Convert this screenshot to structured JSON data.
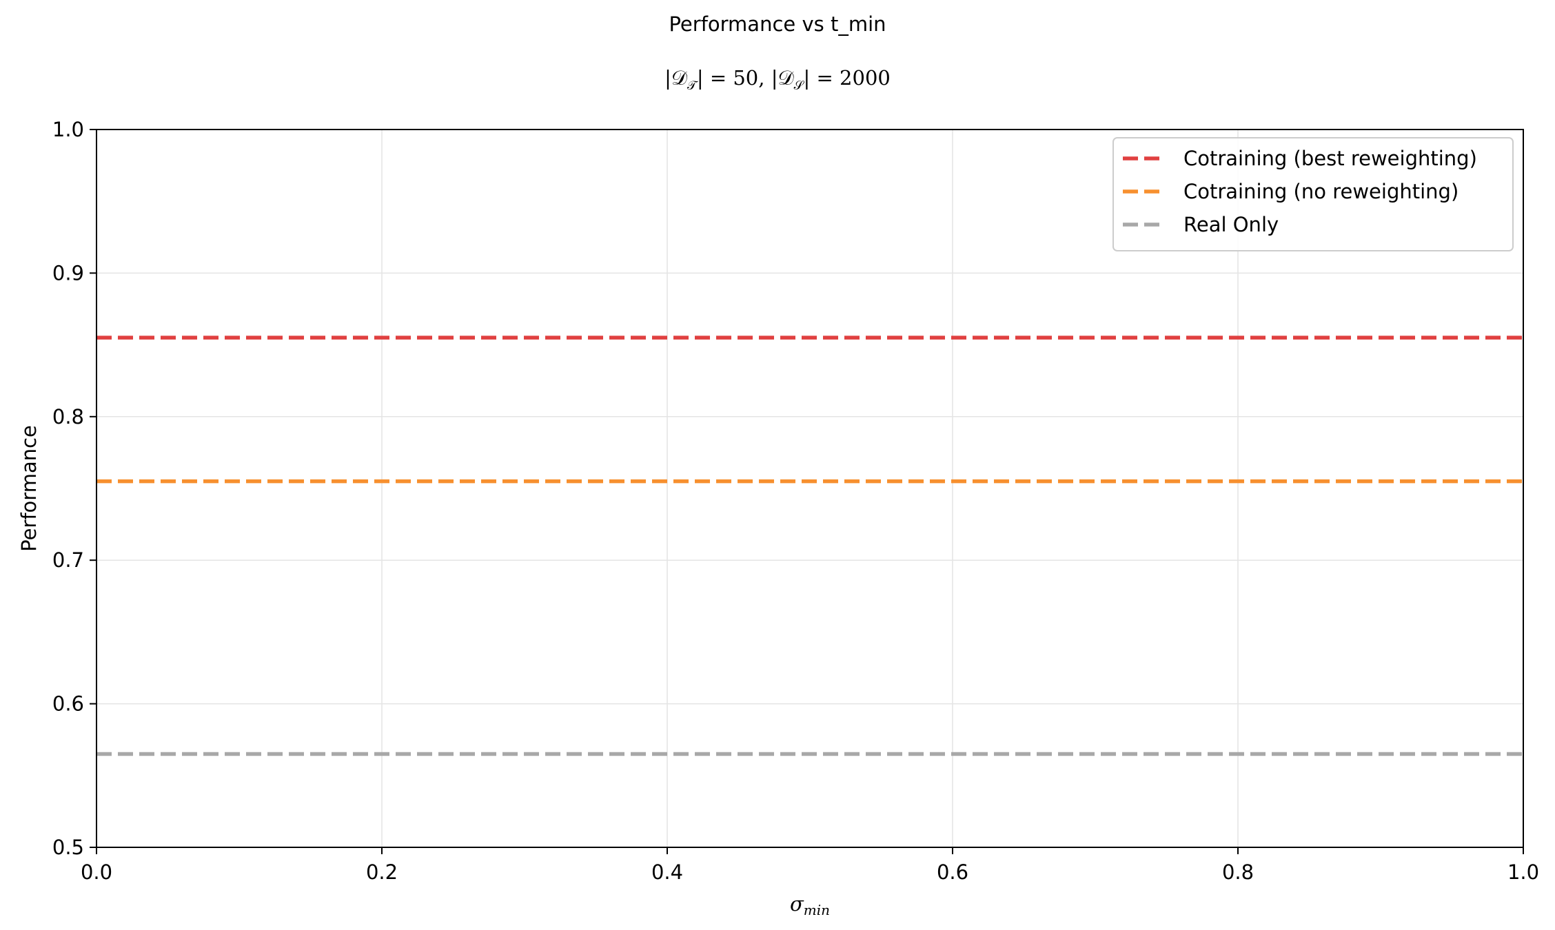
{
  "chart_data": {
    "type": "line",
    "suptitle": "Performance vs t_min",
    "title": "|𝒟_T| = 50, |𝒟_S| = 2000",
    "xlabel": "σ_min",
    "ylabel": "Performance",
    "xlim": [
      0.0,
      1.0
    ],
    "ylim": [
      0.5,
      1.0
    ],
    "xticks": [
      "0.0",
      "0.2",
      "0.4",
      "0.6",
      "0.8",
      "1.0"
    ],
    "yticks": [
      "0.5",
      "0.6",
      "0.7",
      "0.8",
      "0.9",
      "1.0"
    ],
    "grid": true,
    "legend_position": "top-right",
    "series": [
      {
        "name": "Cotraining (best reweighting)",
        "style": "dashed",
        "color": "#e04040",
        "x": [
          0.0,
          1.0
        ],
        "y": [
          0.855,
          0.855
        ]
      },
      {
        "name": "Cotraining (no reweighting)",
        "style": "dashed",
        "color": "#f7902f",
        "x": [
          0.0,
          1.0
        ],
        "y": [
          0.755,
          0.755
        ]
      },
      {
        "name": "Real Only",
        "style": "dashed",
        "color": "#a8a8a8",
        "x": [
          0.0,
          1.0
        ],
        "y": [
          0.565,
          0.565
        ]
      }
    ]
  }
}
